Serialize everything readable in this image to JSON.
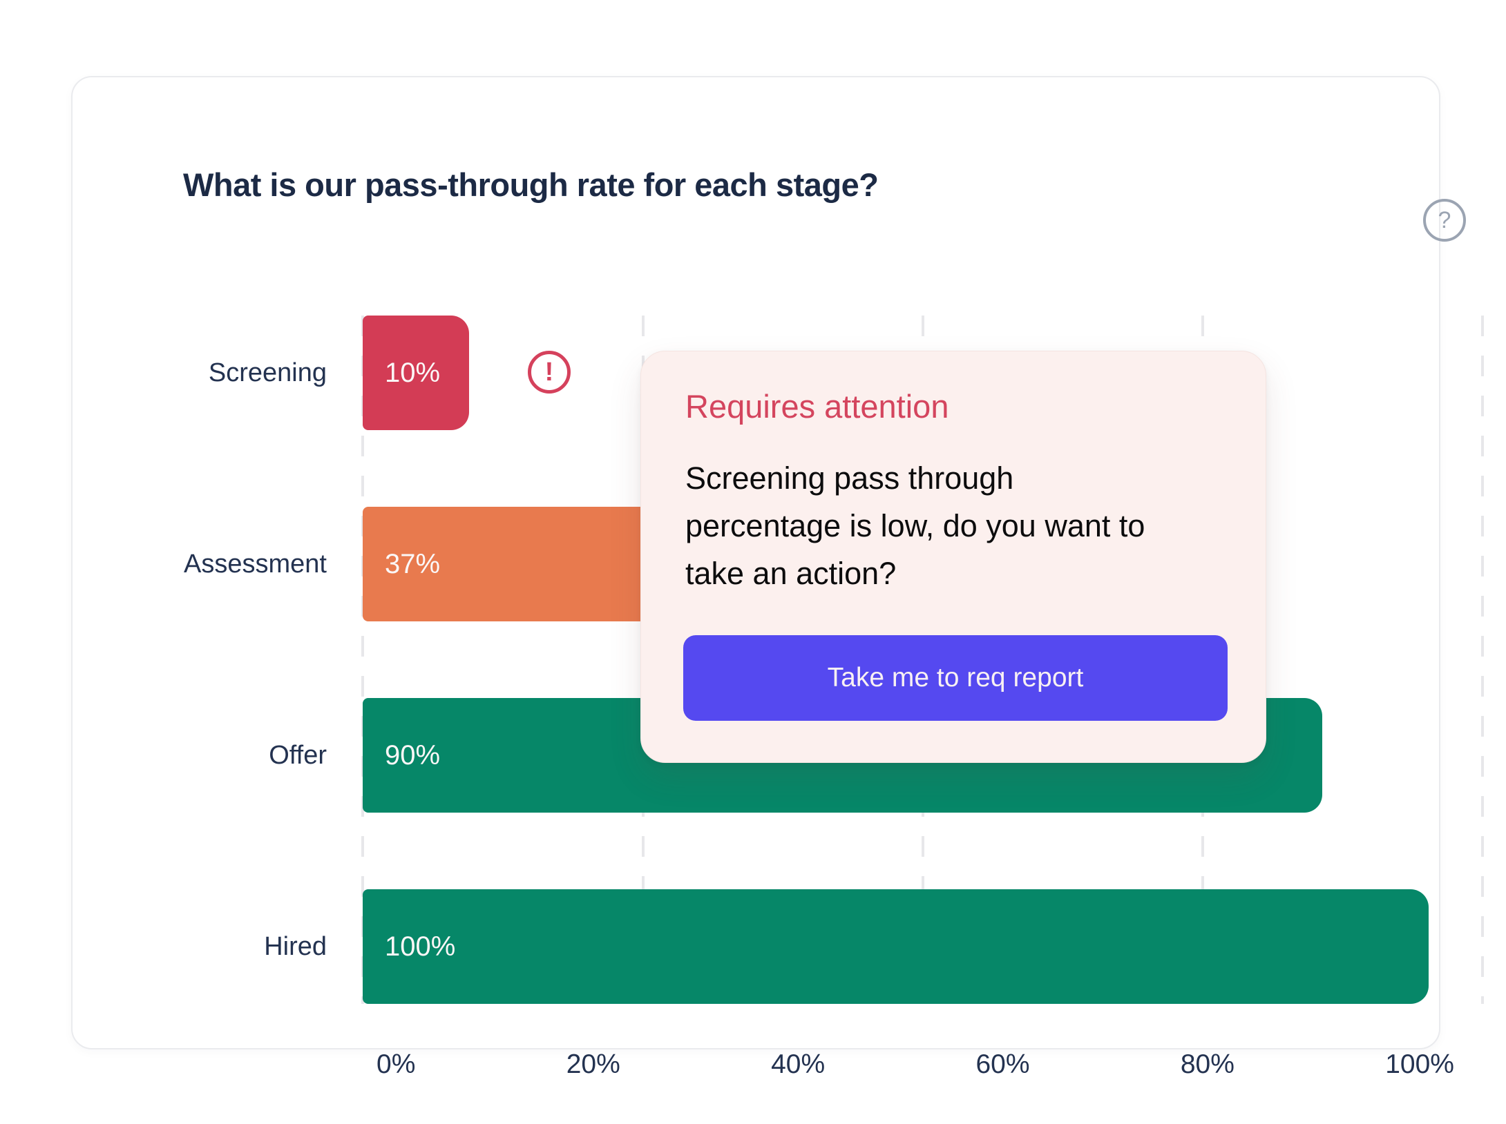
{
  "card": {
    "title": "What is our pass-through rate for each stage?",
    "help_icon": "?"
  },
  "chart_data": {
    "type": "bar",
    "orientation": "horizontal",
    "title": "What is our pass-through rate for each stage?",
    "categories": [
      "Screening",
      "Assessment",
      "Offer",
      "Hired"
    ],
    "values": [
      10,
      37,
      90,
      100
    ],
    "value_labels": [
      "10%",
      "37%",
      "90%",
      "100%"
    ],
    "bar_colors": [
      "#d33c55",
      "#e87a4e",
      "#068768",
      "#068768"
    ],
    "axis_max": 100,
    "x_ticks": [
      "0%",
      "20%",
      "40%",
      "60%",
      "80%",
      "100%"
    ],
    "grid": "dashed-vertical-lines",
    "legend": "none",
    "alert_on_category": "Screening",
    "alert_icon": "!"
  },
  "popover": {
    "heading": "Requires attention",
    "body_lines": [
      "Screening pass through",
      "percentage is low, do you want to",
      "take an action?"
    ],
    "button_label": "Take me to req report",
    "background_color": "#fcf0ee",
    "heading_color": "#d4455e",
    "button_color": "#5549f0"
  },
  "colors": {
    "title_text": "#1c2a45",
    "axis_text": "#233250",
    "bar_value_text": "#fbf7f7",
    "gridline": "#e7e7ea",
    "alert_red": "#d5415c",
    "help_gray": "#9ba4b2",
    "card_border": "#eaebee"
  }
}
